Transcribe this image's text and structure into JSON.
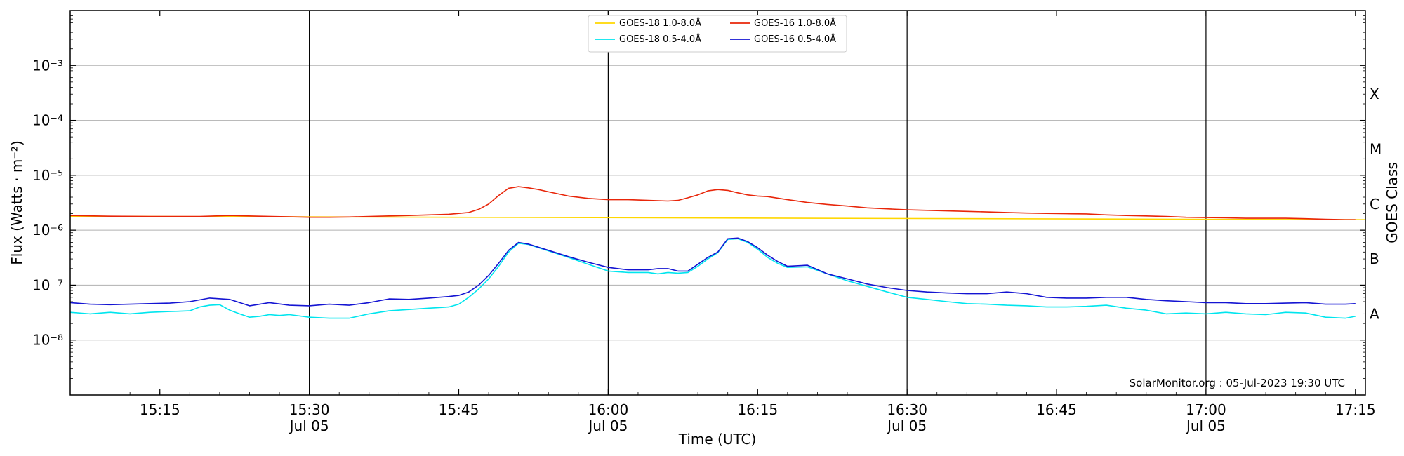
{
  "chart_data": {
    "type": "line",
    "xlabel": "Time (UTC)",
    "ylabel": "Flux (Watts · m⁻²)",
    "y2label": "GOES Class",
    "x_unit": "minutes_since_15:06",
    "xlim_min": [
      0,
      130
    ],
    "y_scale": "log",
    "ylim": [
      1e-09,
      0.01
    ],
    "y_ticks": [
      {
        "value": 1e-08,
        "label": "10⁻⁸"
      },
      {
        "value": 1e-07,
        "label": "10⁻⁷"
      },
      {
        "value": 1e-06,
        "label": "10⁻⁶"
      },
      {
        "value": 1e-05,
        "label": "10⁻⁵"
      },
      {
        "value": 0.0001,
        "label": "10⁻⁴"
      },
      {
        "value": 0.001,
        "label": "10⁻³"
      }
    ],
    "x_ticks": [
      {
        "min": 9,
        "time": "15:15",
        "date": ""
      },
      {
        "min": 24,
        "time": "15:30",
        "date": "Jul 05"
      },
      {
        "min": 39,
        "time": "15:45",
        "date": ""
      },
      {
        "min": 54,
        "time": "16:00",
        "date": "Jul 05"
      },
      {
        "min": 69,
        "time": "16:15",
        "date": ""
      },
      {
        "min": 84,
        "time": "16:30",
        "date": "Jul 05"
      },
      {
        "min": 99,
        "time": "16:45",
        "date": ""
      },
      {
        "min": 114,
        "time": "17:00",
        "date": "Jul 05"
      },
      {
        "min": 129,
        "time": "17:15",
        "date": ""
      }
    ],
    "vlines_min": [
      24,
      54,
      84,
      114
    ],
    "class_labels": [
      {
        "label": "A",
        "value": 3e-08
      },
      {
        "label": "B",
        "value": 3e-07
      },
      {
        "label": "C",
        "value": 3e-06
      },
      {
        "label": "M",
        "value": 3e-05
      },
      {
        "label": "X",
        "value": 0.0003
      }
    ],
    "grid": "horizontal",
    "legend_position": "top-center",
    "legend": [
      {
        "name": "GOES-18 1.0-8.0Å",
        "color": "#ffd700"
      },
      {
        "name": "GOES-18 0.5-4.0Å",
        "color": "#00e5ee"
      },
      {
        "name": "GOES-16 1.0-8.0Å",
        "color": "#e8260a"
      },
      {
        "name": "GOES-16 0.5-4.0Å",
        "color": "#1414d2"
      }
    ],
    "footer": "SolarMonitor.org : 05-Jul-2023 19:30 UTC",
    "series": [
      {
        "name": "GOES-18 1.0-8.0Å",
        "color": "#ffd700",
        "x": [
          0,
          130
        ],
        "y": [
          1.8e-06,
          1.55e-06
        ]
      },
      {
        "name": "GOES-16 1.0-8.0Å",
        "color": "#e8260a",
        "x": [
          0,
          4,
          8,
          10,
          13,
          16,
          19,
          22,
          24,
          26,
          28,
          30,
          32,
          34,
          36,
          38,
          40,
          41,
          42,
          43,
          44,
          45,
          46,
          47,
          48,
          50,
          52,
          54,
          56,
          58,
          60,
          61,
          62,
          63,
          64,
          65,
          66,
          67,
          68,
          69,
          70,
          72,
          74,
          76,
          78,
          80,
          82,
          84,
          86,
          88,
          90,
          92,
          94,
          96,
          98,
          100,
          102,
          104,
          106,
          108,
          110,
          112,
          114,
          116,
          118,
          120,
          122,
          124,
          126,
          128,
          129
        ],
        "y": [
          1.85e-06,
          1.8e-06,
          1.78e-06,
          1.78e-06,
          1.78e-06,
          1.85e-06,
          1.8e-06,
          1.75e-06,
          1.72e-06,
          1.72e-06,
          1.74e-06,
          1.78e-06,
          1.82e-06,
          1.85e-06,
          1.9e-06,
          1.95e-06,
          2.1e-06,
          2.4e-06,
          3e-06,
          4.3e-06,
          5.8e-06,
          6.2e-06,
          5.9e-06,
          5.5e-06,
          5e-06,
          4.2e-06,
          3.8e-06,
          3.6e-06,
          3.6e-06,
          3.5e-06,
          3.4e-06,
          3.5e-06,
          3.9e-06,
          4.4e-06,
          5.2e-06,
          5.5e-06,
          5.3e-06,
          4.8e-06,
          4.4e-06,
          4.2e-06,
          4.1e-06,
          3.6e-06,
          3.2e-06,
          2.95e-06,
          2.75e-06,
          2.55e-06,
          2.45e-06,
          2.35e-06,
          2.3e-06,
          2.25e-06,
          2.2e-06,
          2.15e-06,
          2.1e-06,
          2.05e-06,
          2.02e-06,
          2e-06,
          1.98e-06,
          1.9e-06,
          1.85e-06,
          1.82e-06,
          1.78e-06,
          1.72e-06,
          1.7e-06,
          1.68e-06,
          1.65e-06,
          1.65e-06,
          1.65e-06,
          1.62e-06,
          1.58e-06,
          1.55e-06,
          1.55e-06
        ]
      },
      {
        "name": "GOES-18 0.5-4.0Å",
        "color": "#00e5ee",
        "x": [
          0,
          2,
          4,
          6,
          8,
          10,
          12,
          13,
          14,
          15,
          16,
          17,
          18,
          19,
          20,
          21,
          22,
          24,
          26,
          28,
          30,
          32,
          34,
          36,
          38,
          39,
          40,
          41,
          42,
          43,
          44,
          45,
          46,
          48,
          50,
          52,
          54,
          56,
          58,
          59,
          60,
          61,
          62,
          63,
          64,
          65,
          66,
          67,
          68,
          69,
          70,
          71,
          72,
          74,
          76,
          78,
          80,
          82,
          84,
          86,
          88,
          90,
          92,
          94,
          96,
          98,
          100,
          102,
          104,
          106,
          108,
          110,
          112,
          114,
          116,
          118,
          120,
          122,
          124,
          126,
          128,
          129
        ],
        "y": [
          3.2e-08,
          3e-08,
          3.2e-08,
          3e-08,
          3.2e-08,
          3.3e-08,
          3.4e-08,
          4e-08,
          4.3e-08,
          4.4e-08,
          3.5e-08,
          3e-08,
          2.6e-08,
          2.7e-08,
          2.9e-08,
          2.8e-08,
          2.9e-08,
          2.6e-08,
          2.5e-08,
          2.5e-08,
          3e-08,
          3.4e-08,
          3.6e-08,
          3.8e-08,
          4e-08,
          4.5e-08,
          6e-08,
          8.5e-08,
          1.3e-07,
          2.2e-07,
          4e-07,
          5.8e-07,
          5.5e-07,
          4.2e-07,
          3.2e-07,
          2.4e-07,
          1.8e-07,
          1.7e-07,
          1.7e-07,
          1.6e-07,
          1.7e-07,
          1.65e-07,
          1.7e-07,
          2.2e-07,
          3e-07,
          3.9e-07,
          6.8e-07,
          7e-07,
          6e-07,
          4.5e-07,
          3.2e-07,
          2.5e-07,
          2.1e-07,
          2.15e-07,
          1.6e-07,
          1.2e-07,
          9.5e-08,
          7.5e-08,
          6e-08,
          5.5e-08,
          5e-08,
          4.6e-08,
          4.5e-08,
          4.3e-08,
          4.2e-08,
          4e-08,
          4e-08,
          4.1e-08,
          4.3e-08,
          3.8e-08,
          3.5e-08,
          3e-08,
          3.1e-08,
          3e-08,
          3.2e-08,
          3e-08,
          2.9e-08,
          3.2e-08,
          3.1e-08,
          2.6e-08,
          2.5e-08,
          2.7e-08
        ]
      },
      {
        "name": "GOES-16 0.5-4.0Å",
        "color": "#1414d2",
        "x": [
          0,
          2,
          4,
          6,
          8,
          10,
          12,
          14,
          16,
          18,
          20,
          22,
          24,
          26,
          28,
          30,
          32,
          34,
          36,
          38,
          39,
          40,
          41,
          42,
          43,
          44,
          45,
          46,
          48,
          50,
          52,
          54,
          56,
          58,
          59,
          60,
          61,
          62,
          63,
          64,
          65,
          66,
          67,
          68,
          69,
          70,
          71,
          72,
          74,
          76,
          78,
          80,
          82,
          84,
          86,
          88,
          90,
          92,
          94,
          96,
          98,
          100,
          102,
          104,
          106,
          108,
          110,
          112,
          114,
          116,
          118,
          120,
          122,
          124,
          126,
          128,
          129
        ],
        "y": [
          4.8e-08,
          4.5e-08,
          4.4e-08,
          4.5e-08,
          4.6e-08,
          4.7e-08,
          5e-08,
          5.8e-08,
          5.5e-08,
          4.2e-08,
          4.8e-08,
          4.3e-08,
          4.2e-08,
          4.5e-08,
          4.3e-08,
          4.8e-08,
          5.6e-08,
          5.5e-08,
          5.8e-08,
          6.2e-08,
          6.5e-08,
          7.5e-08,
          1e-07,
          1.5e-07,
          2.5e-07,
          4.3e-07,
          6e-07,
          5.6e-07,
          4.3e-07,
          3.3e-07,
          2.6e-07,
          2.1e-07,
          1.9e-07,
          1.9e-07,
          2e-07,
          2e-07,
          1.8e-07,
          1.8e-07,
          2.4e-07,
          3.2e-07,
          4e-07,
          7e-07,
          7.2e-07,
          6.2e-07,
          4.8e-07,
          3.5e-07,
          2.7e-07,
          2.2e-07,
          2.3e-07,
          1.6e-07,
          1.3e-07,
          1.05e-07,
          9e-08,
          8e-08,
          7.5e-08,
          7.2e-08,
          7e-08,
          7e-08,
          7.5e-08,
          7e-08,
          6e-08,
          5.8e-08,
          5.8e-08,
          6e-08,
          6e-08,
          5.5e-08,
          5.2e-08,
          5e-08,
          4.8e-08,
          4.8e-08,
          4.6e-08,
          4.6e-08,
          4.7e-08,
          4.8e-08,
          4.5e-08,
          4.5e-08,
          4.6e-08
        ]
      }
    ]
  }
}
